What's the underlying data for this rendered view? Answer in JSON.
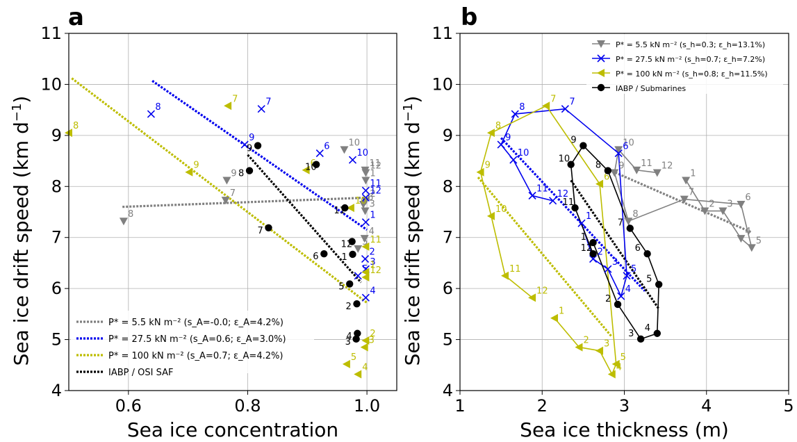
{
  "chart_data": [
    {
      "panel": "a",
      "type": "scatter",
      "xlabel": "Sea ice concentration",
      "ylabel": "Sea ice drift speed (km d⁻¹)",
      "xlim": [
        0.5,
        1.05
      ],
      "ylim": [
        4,
        11
      ],
      "xticks": [
        0.6,
        0.8,
        1.0
      ],
      "xtick_labels": [
        "0.6",
        "0.8",
        "1.0"
      ],
      "yticks": [
        4,
        5,
        6,
        7,
        8,
        9,
        10,
        11
      ],
      "ytick_labels": [
        "4",
        "5",
        "6",
        "7",
        "8",
        "9",
        "10",
        "11"
      ],
      "grid": true,
      "legend_position": "lower-left",
      "legend": [
        {
          "label": "P* = 5.5 kN m⁻² (s_A=-0.0; ε_A=4.2%)",
          "color": "#808080"
        },
        {
          "label": "P* = 27.5 kN m⁻² (s_A=0.6; ε_A=3.0%)",
          "color": "#0000ee"
        },
        {
          "label": "P* = 100 kN m⁻² (s_A=0.7; ε_A=4.2%)",
          "color": "#bdbd00"
        },
        {
          "label": "IABP / OSI SAF",
          "color": "#000000"
        }
      ],
      "series": [
        {
          "key": "gray",
          "marker": "tri-down",
          "color": "#808080",
          "month_labels": true,
          "points": [
            {
              "m": "1",
              "x": 0.998,
              "y": 8.12
            },
            {
              "m": "2",
              "x": 0.998,
              "y": 7.72
            },
            {
              "m": "3",
              "x": 0.997,
              "y": 7.52
            },
            {
              "m": "4",
              "x": 0.996,
              "y": 6.98
            },
            {
              "m": "5",
              "x": 0.985,
              "y": 6.78
            },
            {
              "m": "6",
              "x": 0.994,
              "y": 7.65
            },
            {
              "m": "7",
              "x": 0.763,
              "y": 7.73
            },
            {
              "m": "8",
              "x": 0.592,
              "y": 7.32
            },
            {
              "m": "9",
              "x": 0.765,
              "y": 8.12
            },
            {
              "m": "10",
              "x": 0.962,
              "y": 8.72
            },
            {
              "m": "11",
              "x": 0.997,
              "y": 8.32
            },
            {
              "m": "12",
              "x": 0.998,
              "y": 8.27
            }
          ],
          "fit": {
            "x": [
              0.59,
              1.0
            ],
            "y": [
              7.6,
              7.78
            ]
          }
        },
        {
          "key": "blue",
          "marker": "x",
          "color": "#0000ee",
          "month_labels": true,
          "points": [
            {
              "m": "1",
              "x": 0.998,
              "y": 7.3
            },
            {
              "m": "2",
              "x": 0.997,
              "y": 6.58
            },
            {
              "m": "3",
              "x": 0.998,
              "y": 6.38
            },
            {
              "m": "4",
              "x": 0.998,
              "y": 5.82
            },
            {
              "m": "5",
              "x": 0.985,
              "y": 6.25
            },
            {
              "m": "6",
              "x": 0.921,
              "y": 8.65
            },
            {
              "m": "7",
              "x": 0.823,
              "y": 9.52
            },
            {
              "m": "8",
              "x": 0.638,
              "y": 9.42
            },
            {
              "m": "9",
              "x": 0.795,
              "y": 8.82
            },
            {
              "m": "10",
              "x": 0.976,
              "y": 8.52
            },
            {
              "m": "11",
              "x": 0.998,
              "y": 7.92
            },
            {
              "m": "12",
              "x": 0.998,
              "y": 7.78
            }
          ],
          "fit": {
            "x": [
              0.64,
              1.0
            ],
            "y": [
              10.07,
              7.15
            ]
          }
        },
        {
          "key": "olive",
          "marker": "tri-left",
          "color": "#bdbd00",
          "month_labels": true,
          "points": [
            {
              "m": "1",
              "x": 0.998,
              "y": 6.32
            },
            {
              "m": "2",
              "x": 0.998,
              "y": 4.98
            },
            {
              "m": "3",
              "x": 0.996,
              "y": 4.85
            },
            {
              "m": "4",
              "x": 0.985,
              "y": 4.32
            },
            {
              "m": "5",
              "x": 0.966,
              "y": 4.52
            },
            {
              "m": "6",
              "x": 0.898,
              "y": 8.32
            },
            {
              "m": "7",
              "x": 0.767,
              "y": 9.58
            },
            {
              "m": "8",
              "x": 0.5,
              "y": 9.05
            },
            {
              "m": "9",
              "x": 0.702,
              "y": 8.28
            },
            {
              "m": "10",
              "x": 0.973,
              "y": 7.58
            },
            {
              "m": "11",
              "x": 0.998,
              "y": 6.82
            },
            {
              "m": "12",
              "x": 0.998,
              "y": 6.22
            }
          ],
          "fit": {
            "x": [
              0.505,
              1.0
            ],
            "y": [
              10.12,
              5.72
            ]
          }
        },
        {
          "key": "black",
          "marker": "circle",
          "color": "#000000",
          "month_labels": true,
          "points": [
            {
              "m": "1",
              "x": 0.976,
              "y": 6.67
            },
            {
              "m": "2",
              "x": 0.983,
              "y": 5.7
            },
            {
              "m": "3",
              "x": 0.982,
              "y": 5.01
            },
            {
              "m": "4",
              "x": 0.984,
              "y": 5.12
            },
            {
              "m": "5",
              "x": 0.971,
              "y": 6.09
            },
            {
              "m": "6",
              "x": 0.928,
              "y": 6.68
            },
            {
              "m": "7",
              "x": 0.835,
              "y": 7.19
            },
            {
              "m": "8",
              "x": 0.803,
              "y": 8.31
            },
            {
              "m": "9",
              "x": 0.817,
              "y": 8.8
            },
            {
              "m": "10",
              "x": 0.915,
              "y": 8.43
            },
            {
              "m": "11",
              "x": 0.963,
              "y": 7.58
            },
            {
              "m": "12",
              "x": 0.975,
              "y": 6.92
            }
          ],
          "fit": {
            "x": [
              0.8,
              0.99
            ],
            "y": [
              8.62,
              6.12
            ]
          }
        }
      ]
    },
    {
      "panel": "b",
      "type": "line",
      "xlabel": "Sea ice thickness (m)",
      "ylabel": "Sea ice drift speed (km d⁻¹)",
      "xlim": [
        1,
        5
      ],
      "ylim": [
        4,
        11
      ],
      "xticks": [
        1,
        2,
        3,
        4,
        5
      ],
      "xtick_labels": [
        "1",
        "2",
        "3",
        "4",
        "5"
      ],
      "yticks": [
        4,
        5,
        6,
        7,
        8,
        9,
        10,
        11
      ],
      "ytick_labels": [
        "4",
        "5",
        "6",
        "7",
        "8",
        "9",
        "10",
        "11"
      ],
      "grid": true,
      "legend_position": "upper-right",
      "legend": [
        {
          "label": "P* = 5.5 kN m⁻² (s_h=0.3; ε_h=13.1%)",
          "color": "#808080"
        },
        {
          "label": "P* = 27.5 kN m⁻² (s_h=0.7; ε_h=7.2%)",
          "color": "#0000ee"
        },
        {
          "label": "P* = 100 kN m⁻² (s_h=0.8; ε_h=11.5%)",
          "color": "#bdbd00"
        },
        {
          "label": "IABP / Submarines",
          "color": "#000000"
        }
      ],
      "series": [
        {
          "key": "gray",
          "marker": "tri-down",
          "color": "#808080",
          "month_labels": true,
          "points": [
            {
              "m": "1",
              "x": 3.75,
              "y": 8.12
            },
            {
              "m": "2",
              "x": 3.98,
              "y": 7.52
            },
            {
              "m": "3",
              "x": 4.2,
              "y": 7.52
            },
            {
              "m": "4",
              "x": 4.42,
              "y": 6.98
            },
            {
              "m": "5",
              "x": 4.55,
              "y": 6.8
            },
            {
              "m": "6",
              "x": 4.42,
              "y": 7.65
            },
            {
              "m": "7",
              "x": 3.73,
              "y": 7.75
            },
            {
              "m": "8",
              "x": 3.05,
              "y": 7.32
            },
            {
              "m": "9",
              "x": 2.88,
              "y": 8.27
            },
            {
              "m": "10",
              "x": 2.93,
              "y": 8.72
            },
            {
              "m": "11",
              "x": 3.15,
              "y": 8.32
            },
            {
              "m": "12",
              "x": 3.4,
              "y": 8.27
            }
          ],
          "fit": {
            "x": [
              2.85,
              4.55
            ],
            "y": [
              8.3,
              7.1
            ]
          }
        },
        {
          "key": "blue",
          "marker": "x",
          "color": "#0000ee",
          "month_labels": true,
          "points": [
            {
              "m": "1",
              "x": 2.48,
              "y": 7.28
            },
            {
              "m": "2",
              "x": 2.62,
              "y": 6.58
            },
            {
              "m": "3",
              "x": 2.8,
              "y": 6.38
            },
            {
              "m": "4",
              "x": 2.96,
              "y": 5.85
            },
            {
              "m": "5",
              "x": 3.03,
              "y": 6.25
            },
            {
              "m": "6",
              "x": 2.93,
              "y": 8.65
            },
            {
              "m": "7",
              "x": 2.28,
              "y": 9.52
            },
            {
              "m": "8",
              "x": 1.67,
              "y": 9.42
            },
            {
              "m": "9",
              "x": 1.5,
              "y": 8.82
            },
            {
              "m": "10",
              "x": 1.65,
              "y": 8.52
            },
            {
              "m": "11",
              "x": 1.88,
              "y": 7.82
            },
            {
              "m": "12",
              "x": 2.13,
              "y": 7.72
            }
          ],
          "fit": {
            "x": [
              1.5,
              3.25
            ],
            "y": [
              8.95,
              5.95
            ]
          }
        },
        {
          "key": "olive",
          "marker": "tri-left",
          "color": "#bdbd00",
          "month_labels": true,
          "points": [
            {
              "m": "1",
              "x": 2.15,
              "y": 5.42
            },
            {
              "m": "2",
              "x": 2.45,
              "y": 4.85
            },
            {
              "m": "3",
              "x": 2.7,
              "y": 4.78
            },
            {
              "m": "4",
              "x": 2.85,
              "y": 4.32
            },
            {
              "m": "5",
              "x": 2.9,
              "y": 4.52
            },
            {
              "m": "6",
              "x": 2.7,
              "y": 8.05
            },
            {
              "m": "7",
              "x": 2.05,
              "y": 9.58
            },
            {
              "m": "8",
              "x": 1.38,
              "y": 9.05
            },
            {
              "m": "9",
              "x": 1.25,
              "y": 8.28
            },
            {
              "m": "10",
              "x": 1.38,
              "y": 7.42
            },
            {
              "m": "11",
              "x": 1.55,
              "y": 6.25
            },
            {
              "m": "12",
              "x": 1.88,
              "y": 5.82
            }
          ],
          "fit": {
            "x": [
              1.22,
              2.85
            ],
            "y": [
              8.18,
              5.05
            ]
          }
        },
        {
          "key": "black",
          "marker": "circle",
          "color": "#000000",
          "month_labels": true,
          "points": [
            {
              "m": "1",
              "x": 2.62,
              "y": 6.9
            },
            {
              "m": "2",
              "x": 2.92,
              "y": 5.69
            },
            {
              "m": "3",
              "x": 3.2,
              "y": 5.01
            },
            {
              "m": "4",
              "x": 3.4,
              "y": 5.12
            },
            {
              "m": "5",
              "x": 3.42,
              "y": 6.08
            },
            {
              "m": "6",
              "x": 3.28,
              "y": 6.68
            },
            {
              "m": "7",
              "x": 3.07,
              "y": 7.18
            },
            {
              "m": "8",
              "x": 2.8,
              "y": 8.31
            },
            {
              "m": "9",
              "x": 2.5,
              "y": 8.8
            },
            {
              "m": "10",
              "x": 2.35,
              "y": 8.43
            },
            {
              "m": "11",
              "x": 2.4,
              "y": 7.58
            },
            {
              "m": "12",
              "x": 2.62,
              "y": 6.68
            }
          ],
          "fit": {
            "x": [
              2.35,
              3.42
            ],
            "y": [
              8.12,
              5.6
            ]
          }
        }
      ]
    }
  ]
}
